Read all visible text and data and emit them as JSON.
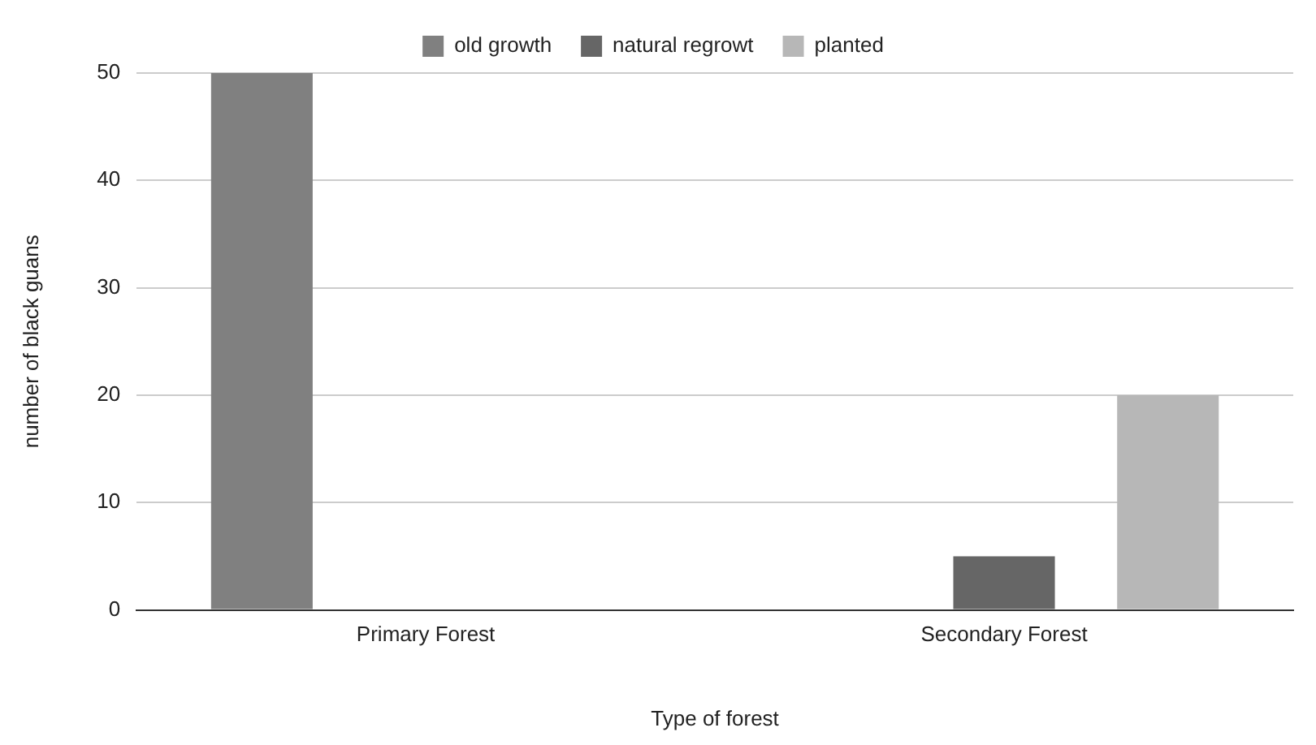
{
  "chart_data": {
    "type": "bar",
    "xlabel": "Type of forest",
    "ylabel": "number of black guans",
    "categories": [
      "Primary Forest",
      "Secondary Forest"
    ],
    "series": [
      {
        "name": "old growth",
        "color": "#808080",
        "values": [
          50,
          0
        ]
      },
      {
        "name": "natural regrowt",
        "color": "#666666",
        "values": [
          0,
          5
        ]
      },
      {
        "name": "planted",
        "color": "#b7b7b7",
        "values": [
          0,
          20
        ]
      }
    ],
    "ylim": [
      0,
      50
    ],
    "yticks": [
      0,
      10,
      20,
      30,
      40,
      50
    ],
    "grid": "y",
    "legend": "top"
  }
}
